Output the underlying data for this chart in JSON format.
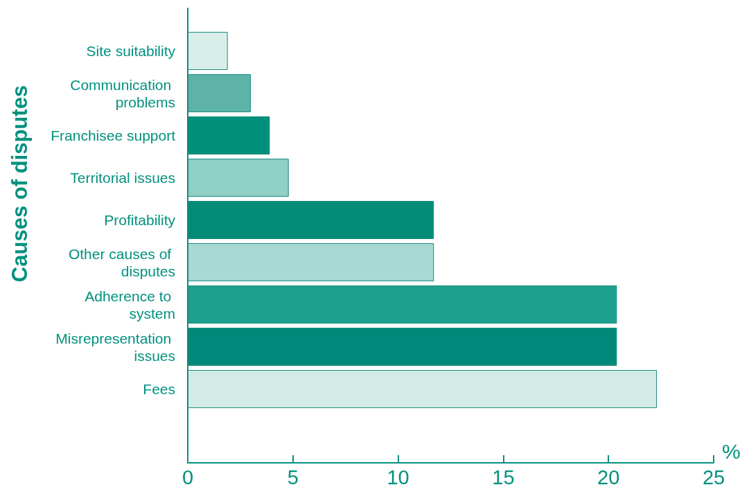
{
  "chart_data": {
    "type": "bar",
    "orientation": "horizontal",
    "ylabel": "Causes of disputes",
    "xlabel": "%",
    "categories": [
      "Site suitability",
      "Communication problems",
      "Franchisee support",
      "Territorial issues",
      "Profitability",
      "Other causes of disputes",
      "Adherence to system",
      "Misrepresentation issues",
      "Fees"
    ],
    "values": [
      1.9,
      3.0,
      3.9,
      4.8,
      11.7,
      11.7,
      20.4,
      20.4,
      22.3
    ],
    "colors": [
      "#d8eeea",
      "#5db3a8",
      "#00907c",
      "#8fcfc6",
      "#008c78",
      "#a8d9d3",
      "#1fa08f",
      "#00897a",
      "#d3ebe7"
    ],
    "xlim": [
      0,
      25
    ],
    "xticks": [
      0,
      5,
      10,
      15,
      20,
      25
    ],
    "grid": false
  }
}
